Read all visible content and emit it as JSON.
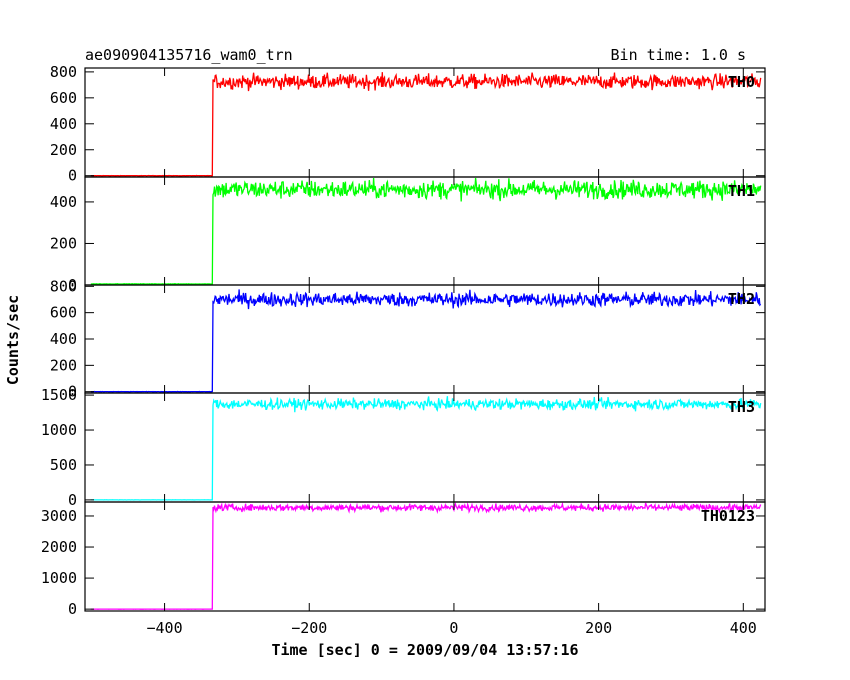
{
  "chart_data": {
    "type": "line",
    "title": "ae090904135716_wam0_trn",
    "bin_time_label": "Bin time: 1.0 s",
    "xlabel": "Time [sec] 0 = 2009/09/04 13:57:16",
    "ylabel": "Counts/sec",
    "xlim": [
      -510,
      430
    ],
    "x_ticks": [
      -400,
      -200,
      0,
      200,
      400
    ],
    "x_tick_labels": [
      "−400",
      "−200",
      "0",
      "200",
      "400"
    ],
    "step_time": -333,
    "sample_step": 1,
    "panels": [
      {
        "name": "TH0",
        "color": "#ff0000",
        "ylim": [
          -10,
          830
        ],
        "ticks": [
          0,
          200,
          400,
          600,
          800
        ],
        "pre_level": 0,
        "post_level": 725,
        "noise": 28
      },
      {
        "name": "TH1",
        "color": "#00ff00",
        "ylim": [
          0,
          520
        ],
        "ticks": [
          0,
          200,
          400
        ],
        "pre_level": 5,
        "post_level": 460,
        "noise": 22
      },
      {
        "name": "TH2",
        "color": "#0000ff",
        "ylim": [
          -10,
          810
        ],
        "ticks": [
          0,
          200,
          400,
          600,
          800
        ],
        "pre_level": 0,
        "post_level": 700,
        "noise": 27
      },
      {
        "name": "TH3",
        "color": "#00ffff",
        "ylim": [
          -30,
          1530
        ],
        "ticks": [
          0,
          500,
          1000,
          1500
        ],
        "pre_level": 0,
        "post_level": 1370,
        "noise": 38
      },
      {
        "name": "TH0123",
        "color": "#ff00ff",
        "ylim": [
          -60,
          3450
        ],
        "ticks": [
          0,
          1000,
          2000,
          3000
        ],
        "pre_level": 0,
        "post_level": 3270,
        "noise": 55
      }
    ]
  }
}
